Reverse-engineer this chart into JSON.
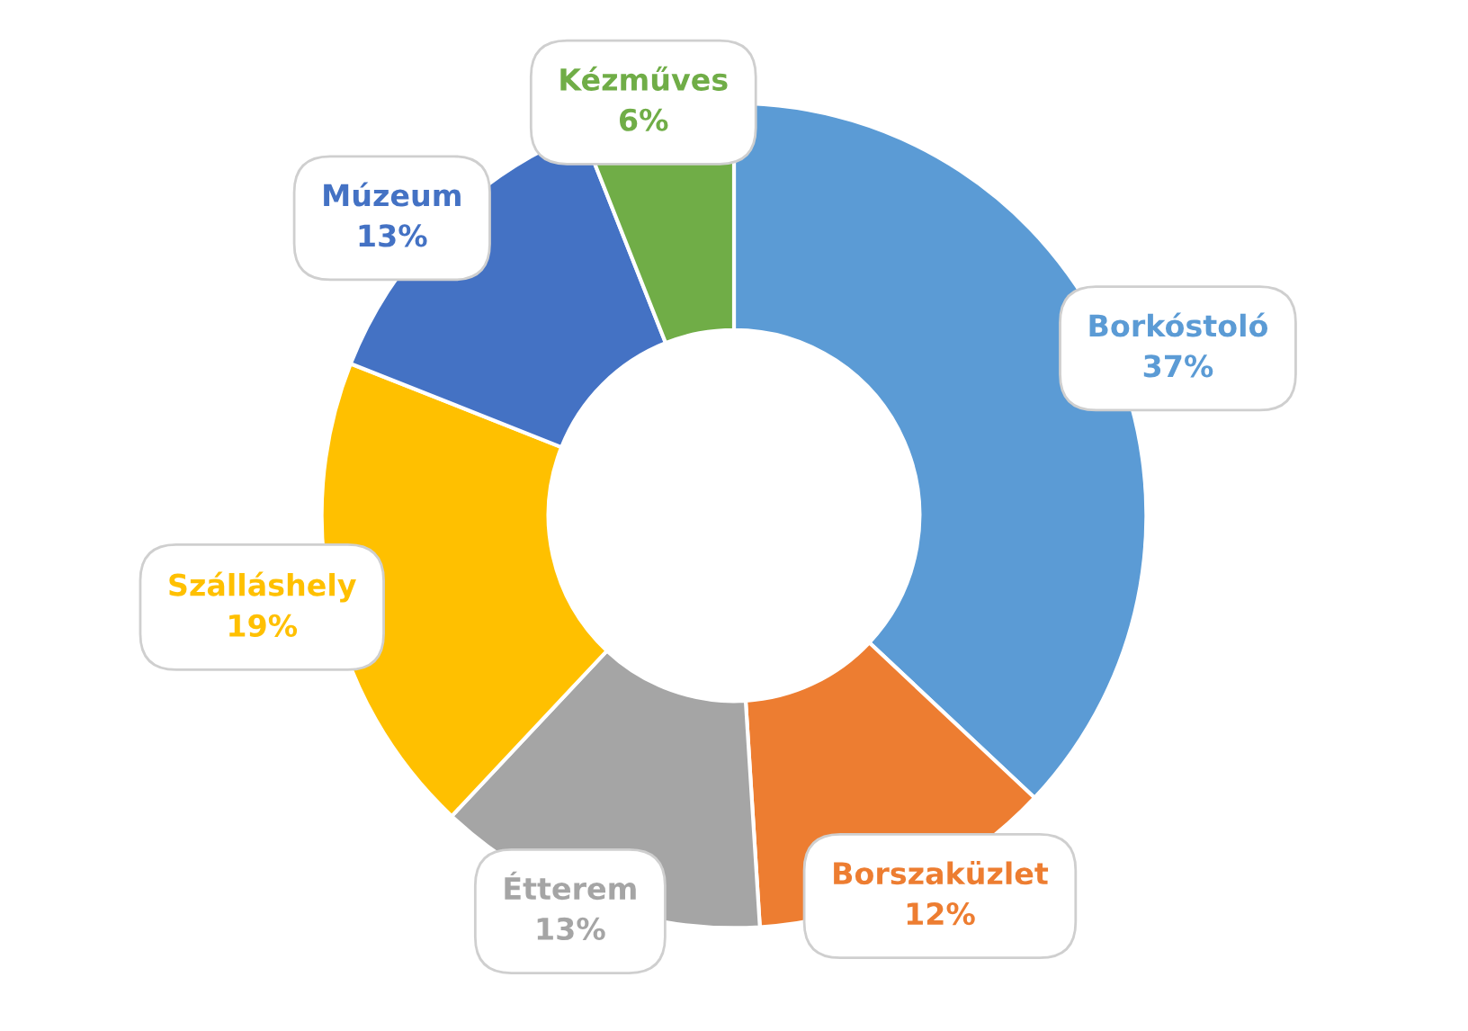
{
  "chart_data": {
    "type": "donut",
    "categories": [
      "Borkóstoló",
      "Borszaküzlet",
      "Étterem",
      "Szálláshely",
      "Múzeum",
      "Kézműves"
    ],
    "values": [
      37,
      12,
      13,
      19,
      13,
      6
    ],
    "colors": [
      "#5b9bd5",
      "#ed7d31",
      "#a5a5a5",
      "#ffc000",
      "#4472c4",
      "#70ad47"
    ],
    "value_labels": [
      "37%",
      "12%",
      "13%",
      "19%",
      "13%",
      "6%"
    ]
  }
}
